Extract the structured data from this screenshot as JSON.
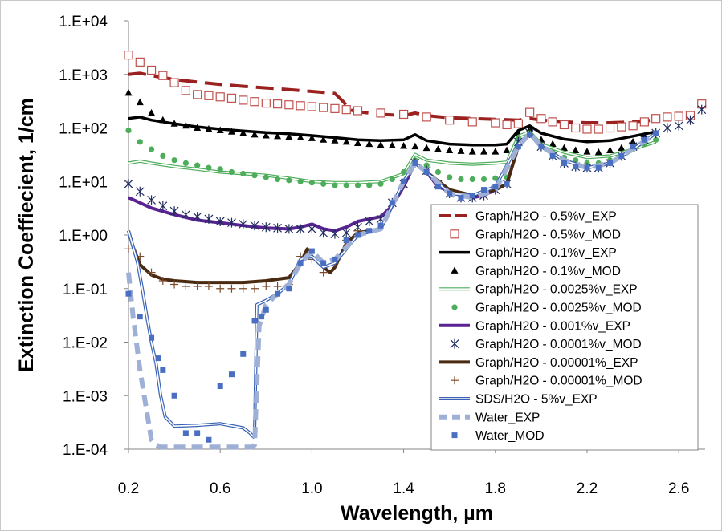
{
  "chart_data": {
    "type": "line",
    "xlabel": "Wavelength, µm",
    "ylabel": "Extinction Coeffiecient, 1/cm",
    "xlim": [
      0.15,
      2.7
    ],
    "ylim": [
      0.0001,
      10000
    ],
    "yscale": "log",
    "xticks": [
      "0.2",
      "0.6",
      "1.0",
      "1.4",
      "1.8",
      "2.2",
      "2.6"
    ],
    "yticks": [
      "1.E-04",
      "1.E-03",
      "1.E-02",
      "1.E-01",
      "1.E+00",
      "1.E+01",
      "1.E+02",
      "1.E+03",
      "1.E+04"
    ],
    "grid": false,
    "legend_position": "bottom-right",
    "series": [
      {
        "name": "Graph/H2O - 0.5%v_EXP",
        "style": "dash",
        "color": "#9b2121",
        "x": [
          0.2,
          0.25,
          0.3,
          0.4,
          0.5,
          0.6,
          0.7,
          0.8,
          0.9,
          1.0,
          1.1,
          1.14,
          1.16,
          1.2,
          1.3,
          1.4,
          1.45,
          1.5,
          1.6,
          1.7,
          1.8,
          1.9,
          1.95,
          2.0,
          2.1,
          2.2,
          2.3,
          2.4,
          2.5
        ],
        "y": [
          1000,
          1050,
          950,
          800,
          720,
          650,
          600,
          560,
          520,
          480,
          440,
          300,
          220,
          200,
          180,
          170,
          190,
          170,
          155,
          150,
          145,
          140,
          150,
          140,
          130,
          125,
          125,
          130,
          140
        ]
      },
      {
        "name": "Graph/H2O - 0.5%v_MOD",
        "style": "open-square",
        "color": "#c0504d",
        "x": [
          0.2,
          0.25,
          0.3,
          0.35,
          0.4,
          0.45,
          0.5,
          0.55,
          0.6,
          0.65,
          0.7,
          0.75,
          0.8,
          0.85,
          0.9,
          0.95,
          1.0,
          1.05,
          1.1,
          1.15,
          1.2,
          1.3,
          1.4,
          1.5,
          1.6,
          1.7,
          1.8,
          1.85,
          1.9,
          1.95,
          2.0,
          2.05,
          2.1,
          2.15,
          2.2,
          2.25,
          2.3,
          2.35,
          2.4,
          2.45,
          2.5,
          2.55,
          2.6,
          2.65,
          2.7
        ],
        "y": [
          2300,
          1700,
          1200,
          950,
          700,
          500,
          420,
          400,
          380,
          360,
          330,
          310,
          290,
          280,
          270,
          260,
          250,
          240,
          230,
          220,
          210,
          190,
          180,
          160,
          140,
          130,
          125,
          115,
          120,
          195,
          150,
          130,
          115,
          100,
          95,
          95,
          100,
          105,
          110,
          130,
          150,
          160,
          165,
          170,
          280
        ]
      },
      {
        "name": "Graph/H2O - 0.1%v_EXP",
        "style": "solid",
        "color": "#000000",
        "x": [
          0.2,
          0.25,
          0.3,
          0.4,
          0.5,
          0.6,
          0.7,
          0.8,
          0.9,
          1.0,
          1.1,
          1.2,
          1.3,
          1.4,
          1.45,
          1.5,
          1.6,
          1.7,
          1.8,
          1.85,
          1.9,
          1.95,
          2.0,
          2.1,
          2.2,
          2.3,
          2.4,
          2.5
        ],
        "y": [
          150,
          160,
          140,
          120,
          105,
          95,
          88,
          82,
          78,
          72,
          66,
          60,
          58,
          60,
          75,
          58,
          50,
          48,
          48,
          50,
          90,
          110,
          80,
          62,
          55,
          58,
          70,
          85
        ]
      },
      {
        "name": "Graph/H2O - 0.1%v_MOD",
        "style": "triangle",
        "color": "#000000",
        "x": [
          0.2,
          0.25,
          0.3,
          0.35,
          0.4,
          0.45,
          0.5,
          0.55,
          0.6,
          0.65,
          0.7,
          0.75,
          0.8,
          0.85,
          0.9,
          0.95,
          1.0,
          1.05,
          1.1,
          1.15,
          1.2,
          1.25,
          1.3,
          1.35,
          1.4,
          1.45,
          1.5,
          1.55,
          1.6,
          1.65,
          1.7,
          1.75,
          1.8,
          1.85,
          1.9,
          1.95,
          2.0,
          2.05,
          2.1,
          2.15,
          2.2,
          2.25,
          2.3,
          2.35,
          2.4,
          2.45,
          2.5
        ],
        "y": [
          450,
          300,
          190,
          140,
          120,
          110,
          100,
          95,
          90,
          85,
          80,
          75,
          72,
          70,
          68,
          66,
          64,
          60,
          58,
          55,
          52,
          50,
          48,
          47,
          46,
          45,
          42,
          40,
          38,
          37,
          36,
          36,
          36,
          38,
          80,
          95,
          60,
          50,
          42,
          38,
          36,
          35,
          38,
          42,
          55,
          70,
          80
        ]
      },
      {
        "name": "Graph/H2O - 0.0025%v_EXP",
        "style": "double",
        "color": "#4ead5b",
        "x": [
          0.2,
          0.25,
          0.3,
          0.4,
          0.5,
          0.6,
          0.7,
          0.8,
          0.9,
          1.0,
          1.1,
          1.2,
          1.3,
          1.4,
          1.45,
          1.5,
          1.6,
          1.7,
          1.8,
          1.85,
          1.9,
          1.95,
          2.0,
          2.1,
          2.2,
          2.3,
          2.4,
          2.5
        ],
        "y": [
          22,
          24,
          22,
          19,
          17,
          15,
          14,
          13,
          11.5,
          10,
          9.5,
          9.5,
          10,
          14,
          32,
          25,
          22,
          21,
          22,
          23,
          70,
          85,
          50,
          35,
          28,
          30,
          40,
          55
        ]
      },
      {
        "name": "Graph/H2O - 0.0025%v_MOD",
        "style": "circle",
        "color": "#4ead5b",
        "x": [
          0.2,
          0.25,
          0.3,
          0.35,
          0.4,
          0.45,
          0.5,
          0.55,
          0.6,
          0.65,
          0.7,
          0.75,
          0.8,
          0.85,
          0.9,
          0.95,
          1.0,
          1.05,
          1.1,
          1.15,
          1.2,
          1.25,
          1.3,
          1.35,
          1.4,
          1.45,
          1.5,
          1.55,
          1.6,
          1.65,
          1.7,
          1.75,
          1.8,
          1.85,
          1.9,
          1.95,
          2.0,
          2.05,
          2.1,
          2.15,
          2.2,
          2.25,
          2.3,
          2.35,
          2.4,
          2.45,
          2.5
        ],
        "y": [
          90,
          55,
          40,
          30,
          25,
          22,
          20,
          18,
          17,
          15,
          14,
          13,
          12,
          11,
          10.5,
          10,
          9.5,
          9,
          8.5,
          8.5,
          8.5,
          8.5,
          9,
          11,
          15,
          25,
          20,
          15,
          12,
          11,
          11,
          11,
          11.5,
          12,
          65,
          75,
          45,
          35,
          28,
          25,
          22,
          22,
          25,
          30,
          40,
          50,
          60
        ]
      },
      {
        "name": "Graph/H2O - 0.001%v_EXP",
        "style": "thick",
        "color": "#5a2393",
        "x": [
          0.2,
          0.25,
          0.3,
          0.4,
          0.5,
          0.6,
          0.7,
          0.8,
          0.9,
          0.95,
          1.0,
          1.05,
          1.1,
          1.15,
          1.2,
          1.3,
          1.35,
          1.4,
          1.45,
          1.5,
          1.55,
          1.6,
          1.65,
          1.7,
          1.75,
          1.8,
          1.85,
          1.9,
          1.95,
          2.0,
          2.1,
          2.2,
          2.3,
          2.4,
          2.5
        ],
        "y": [
          5,
          4,
          3.2,
          2.4,
          1.9,
          1.7,
          1.5,
          1.35,
          1.3,
          1.4,
          1.6,
          1.3,
          1.2,
          1.4,
          1.8,
          2.2,
          3.5,
          8,
          22,
          15,
          8,
          6.5,
          5.5,
          5,
          5.5,
          7,
          9,
          45,
          80,
          45,
          25,
          18,
          22,
          40,
          80
        ]
      },
      {
        "name": "Graph/H2O - 0.0001%v_MOD",
        "style": "asterisk",
        "color": "#1f2a5e",
        "x": [
          0.2,
          0.25,
          0.3,
          0.35,
          0.4,
          0.45,
          0.5,
          0.55,
          0.6,
          0.65,
          0.7,
          0.75,
          0.8,
          0.85,
          0.9,
          0.95,
          1.0,
          1.05,
          1.1,
          1.15,
          1.2,
          1.25,
          1.3,
          1.35,
          1.4,
          1.45,
          1.5,
          1.55,
          1.6,
          1.65,
          1.7,
          1.75,
          1.8,
          1.85,
          1.9,
          1.95,
          2.0,
          2.05,
          2.1,
          2.15,
          2.2,
          2.25,
          2.3,
          2.35,
          2.4,
          2.45,
          2.5,
          2.55,
          2.6,
          2.65,
          2.7
        ],
        "y": [
          9,
          6.5,
          4.5,
          3.5,
          2.8,
          2.4,
          2.2,
          2.0,
          1.8,
          1.7,
          1.6,
          1.5,
          1.4,
          1.35,
          1.3,
          1.3,
          1.3,
          1.1,
          1.05,
          1.1,
          1.4,
          1.8,
          2.0,
          4,
          9,
          22,
          16,
          9,
          6,
          5,
          5,
          5.5,
          7,
          9,
          55,
          80,
          45,
          30,
          22,
          19,
          18,
          18,
          22,
          30,
          45,
          60,
          80,
          100,
          110,
          140,
          220
        ]
      },
      {
        "name": "Graph/H2O - 0.00001%_EXP",
        "style": "thick",
        "color": "#4a2a10",
        "x": [
          0.2,
          0.22,
          0.25,
          0.3,
          0.35,
          0.4,
          0.5,
          0.6,
          0.7,
          0.8,
          0.9,
          0.95,
          0.98,
          1.0,
          1.05,
          1.08,
          1.1,
          1.15,
          1.2,
          1.3,
          1.35,
          1.4,
          1.45,
          1.5,
          1.6,
          1.7,
          1.8,
          1.85,
          1.9,
          1.95,
          2.0,
          2.1,
          2.2,
          2.3,
          2.4,
          2.5
        ],
        "y": [
          1.2,
          0.6,
          0.28,
          0.18,
          0.15,
          0.14,
          0.13,
          0.13,
          0.13,
          0.14,
          0.16,
          0.3,
          0.55,
          0.4,
          0.25,
          0.2,
          0.25,
          0.7,
          1.1,
          1.3,
          3.5,
          10,
          22,
          15,
          7,
          5.5,
          7,
          9,
          45,
          80,
          45,
          25,
          18,
          22,
          40,
          80
        ]
      },
      {
        "name": "Graph/H2O - 0.00001%_MOD",
        "style": "plus",
        "color": "#7a4a2a",
        "x": [
          0.2,
          0.25,
          0.3,
          0.35,
          0.4,
          0.45,
          0.5,
          0.55,
          0.6,
          0.65,
          0.7,
          0.75,
          0.8,
          0.85,
          0.9,
          0.95,
          1.0,
          1.05,
          1.1,
          1.15,
          1.2
        ],
        "y": [
          0.55,
          0.4,
          0.2,
          0.14,
          0.12,
          0.11,
          0.11,
          0.11,
          0.1,
          0.1,
          0.1,
          0.1,
          0.11,
          0.11,
          0.12,
          0.4,
          0.35,
          0.2,
          0.3,
          0.8,
          1.2
        ]
      },
      {
        "name": "SDS/H2O - 5%v_EXP",
        "style": "double",
        "color": "#3a63b5",
        "x": [
          0.2,
          0.22,
          0.24,
          0.26,
          0.28,
          0.3,
          0.32,
          0.34,
          0.36,
          0.4,
          0.5,
          0.6,
          0.7,
          0.73,
          0.745,
          0.75,
          0.76,
          0.8,
          0.85,
          0.9,
          0.95,
          1.0,
          1.05,
          1.1,
          1.2,
          1.3,
          1.4,
          1.45,
          1.5,
          1.6,
          1.7,
          1.8,
          1.9,
          1.95,
          2.0,
          2.1,
          2.2,
          2.3,
          2.4,
          2.5
        ],
        "y": [
          1.2,
          0.6,
          0.3,
          0.1,
          0.03,
          0.01,
          0.004,
          0.001,
          0.0004,
          0.00027,
          0.00028,
          0.0003,
          0.00025,
          0.0002,
          0.00017,
          0.0002,
          0.05,
          0.06,
          0.08,
          0.12,
          0.35,
          0.4,
          0.25,
          0.3,
          1.0,
          1.3,
          10,
          22,
          15,
          6,
          5.5,
          8,
          50,
          80,
          45,
          25,
          18,
          22,
          40,
          80
        ]
      },
      {
        "name": "Water_EXP",
        "style": "thick-dash",
        "color": "#9fb0d6",
        "x": [
          0.2,
          0.22,
          0.25,
          0.28,
          0.3,
          0.32,
          0.34,
          0.36,
          0.4,
          0.5,
          0.6,
          0.7,
          0.74,
          0.75,
          0.77,
          0.8,
          0.85,
          0.9,
          0.95,
          1.0,
          1.05,
          1.1,
          1.2,
          1.3,
          1.4,
          1.45,
          1.5,
          1.6,
          1.7,
          1.8,
          1.9,
          1.95,
          2.0,
          2.1,
          2.2,
          2.3,
          2.4,
          2.5
        ],
        "y": [
          0.2,
          0.03,
          0.003,
          0.0005,
          0.00015,
          0.00012,
          0.00011,
          0.00011,
          0.00011,
          0.00011,
          0.00011,
          0.00011,
          0.00011,
          0.00012,
          0.02,
          0.05,
          0.08,
          0.12,
          0.3,
          0.5,
          0.3,
          0.35,
          1.0,
          1.3,
          10,
          22,
          15,
          6,
          5,
          7,
          45,
          80,
          45,
          25,
          18,
          22,
          40,
          80
        ]
      },
      {
        "name": "Water_MOD",
        "style": "filled-square",
        "color": "#4a6fc2",
        "x": [
          0.2,
          0.25,
          0.3,
          0.33,
          0.35,
          0.4,
          0.45,
          0.5,
          0.55,
          0.6,
          0.65,
          0.7,
          0.75,
          0.78,
          0.8,
          0.85,
          0.9,
          0.95,
          1.0,
          1.05,
          1.1,
          1.15,
          1.2,
          1.25,
          1.3,
          1.35,
          1.4,
          1.45,
          1.5,
          1.55,
          1.6,
          1.65,
          1.7,
          1.75,
          1.8,
          1.85,
          1.9,
          1.95,
          2.0,
          2.05,
          2.1,
          2.15,
          2.2,
          2.25,
          2.3,
          2.35,
          2.4,
          2.45,
          2.5
        ],
        "y": [
          0.08,
          0.03,
          0.012,
          0.005,
          0.003,
          0.001,
          0.0002,
          0.0002,
          0.00015,
          0.0015,
          0.0025,
          0.006,
          0.025,
          0.03,
          0.04,
          0.08,
          0.1,
          0.3,
          0.5,
          0.3,
          0.35,
          0.8,
          1.0,
          1.2,
          1.5,
          4,
          10,
          22,
          15,
          8,
          6,
          5,
          5.5,
          7,
          8,
          9,
          45,
          75,
          45,
          30,
          22,
          19,
          18,
          18,
          22,
          30,
          45,
          60,
          80
        ]
      }
    ]
  }
}
